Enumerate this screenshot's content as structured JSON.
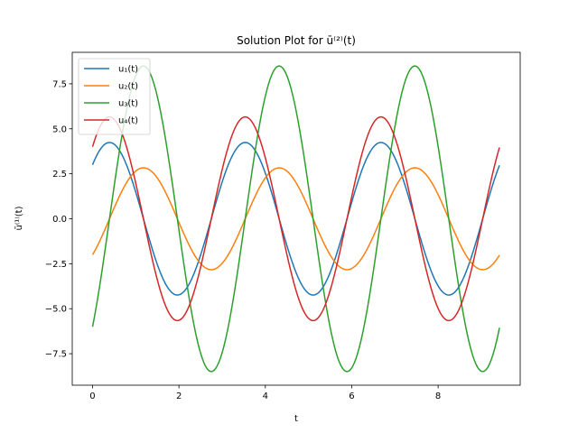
{
  "chart_data": {
    "type": "line",
    "title": "Solution Plot for ū⁽²⁾(t)",
    "xlabel": "t",
    "ylabel": "ū⁽¹⁾(t)",
    "xlim": [
      -0.47,
      9.9
    ],
    "ylim": [
      -9.25,
      9.25
    ],
    "x_ticks": [
      0,
      2,
      4,
      6,
      8
    ],
    "x_tick_labels": [
      "0",
      "2",
      "4",
      "6",
      "8"
    ],
    "y_ticks": [
      -7.5,
      -5.0,
      -2.5,
      0.0,
      2.5,
      5.0,
      7.5
    ],
    "y_tick_labels": [
      "−7.5",
      "−5.0",
      "−2.5",
      "0.0",
      "2.5",
      "5.0",
      "7.5"
    ],
    "grid": false,
    "legend_position": "top-left",
    "x_range": [
      0,
      9.42
    ],
    "series": [
      {
        "name": "u₁(t)",
        "color": "#1f77b4",
        "amplitude": 4.24,
        "omega": 2.0,
        "phase": 0.785
      },
      {
        "name": "u₂(t)",
        "color": "#ff7f0e",
        "amplitude": 2.83,
        "omega": 2.0,
        "phase": -0.785
      },
      {
        "name": "u₃(t)",
        "color": "#2ca02c",
        "amplitude": 8.49,
        "omega": 2.0,
        "phase": -0.785
      },
      {
        "name": "u₄(t)",
        "color": "#d62728",
        "amplitude": 5.66,
        "omega": 2.0,
        "phase": 0.785
      }
    ]
  }
}
